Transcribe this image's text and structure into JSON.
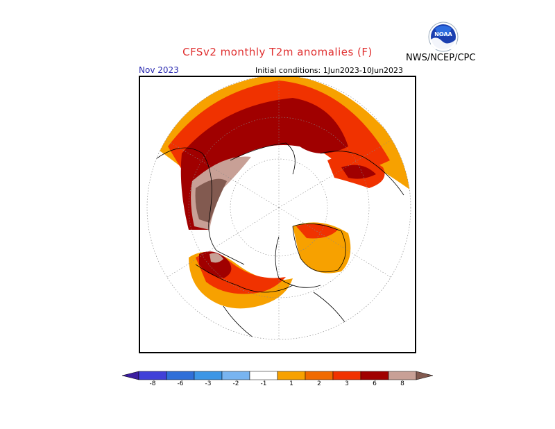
{
  "header": {
    "title": "CFSv2 monthly T2m anomalies (F)",
    "month": "Nov 2023",
    "initial_conditions": "Initial conditions: 1Jun2023-10Jun2023",
    "agency": "NWS/NCEP/CPC",
    "logo_text": "NOAA"
  },
  "colorbar": {
    "bins": [
      {
        "color": "#3c1ea0"
      },
      {
        "color": "#4040d8"
      },
      {
        "color": "#2f6fd8"
      },
      {
        "color": "#3c96e6"
      },
      {
        "color": "#78b4f0"
      },
      {
        "color": "#ffffff"
      },
      {
        "color": "#f7a100"
      },
      {
        "color": "#f06a00"
      },
      {
        "color": "#f03200"
      },
      {
        "color": "#a00000"
      },
      {
        "color": "#c8a096"
      },
      {
        "color": "#825a50"
      }
    ],
    "tick_labels": [
      "-8",
      "-6",
      "-3",
      "-2",
      "-1",
      "1",
      "2",
      "3",
      "6",
      "8"
    ]
  }
}
